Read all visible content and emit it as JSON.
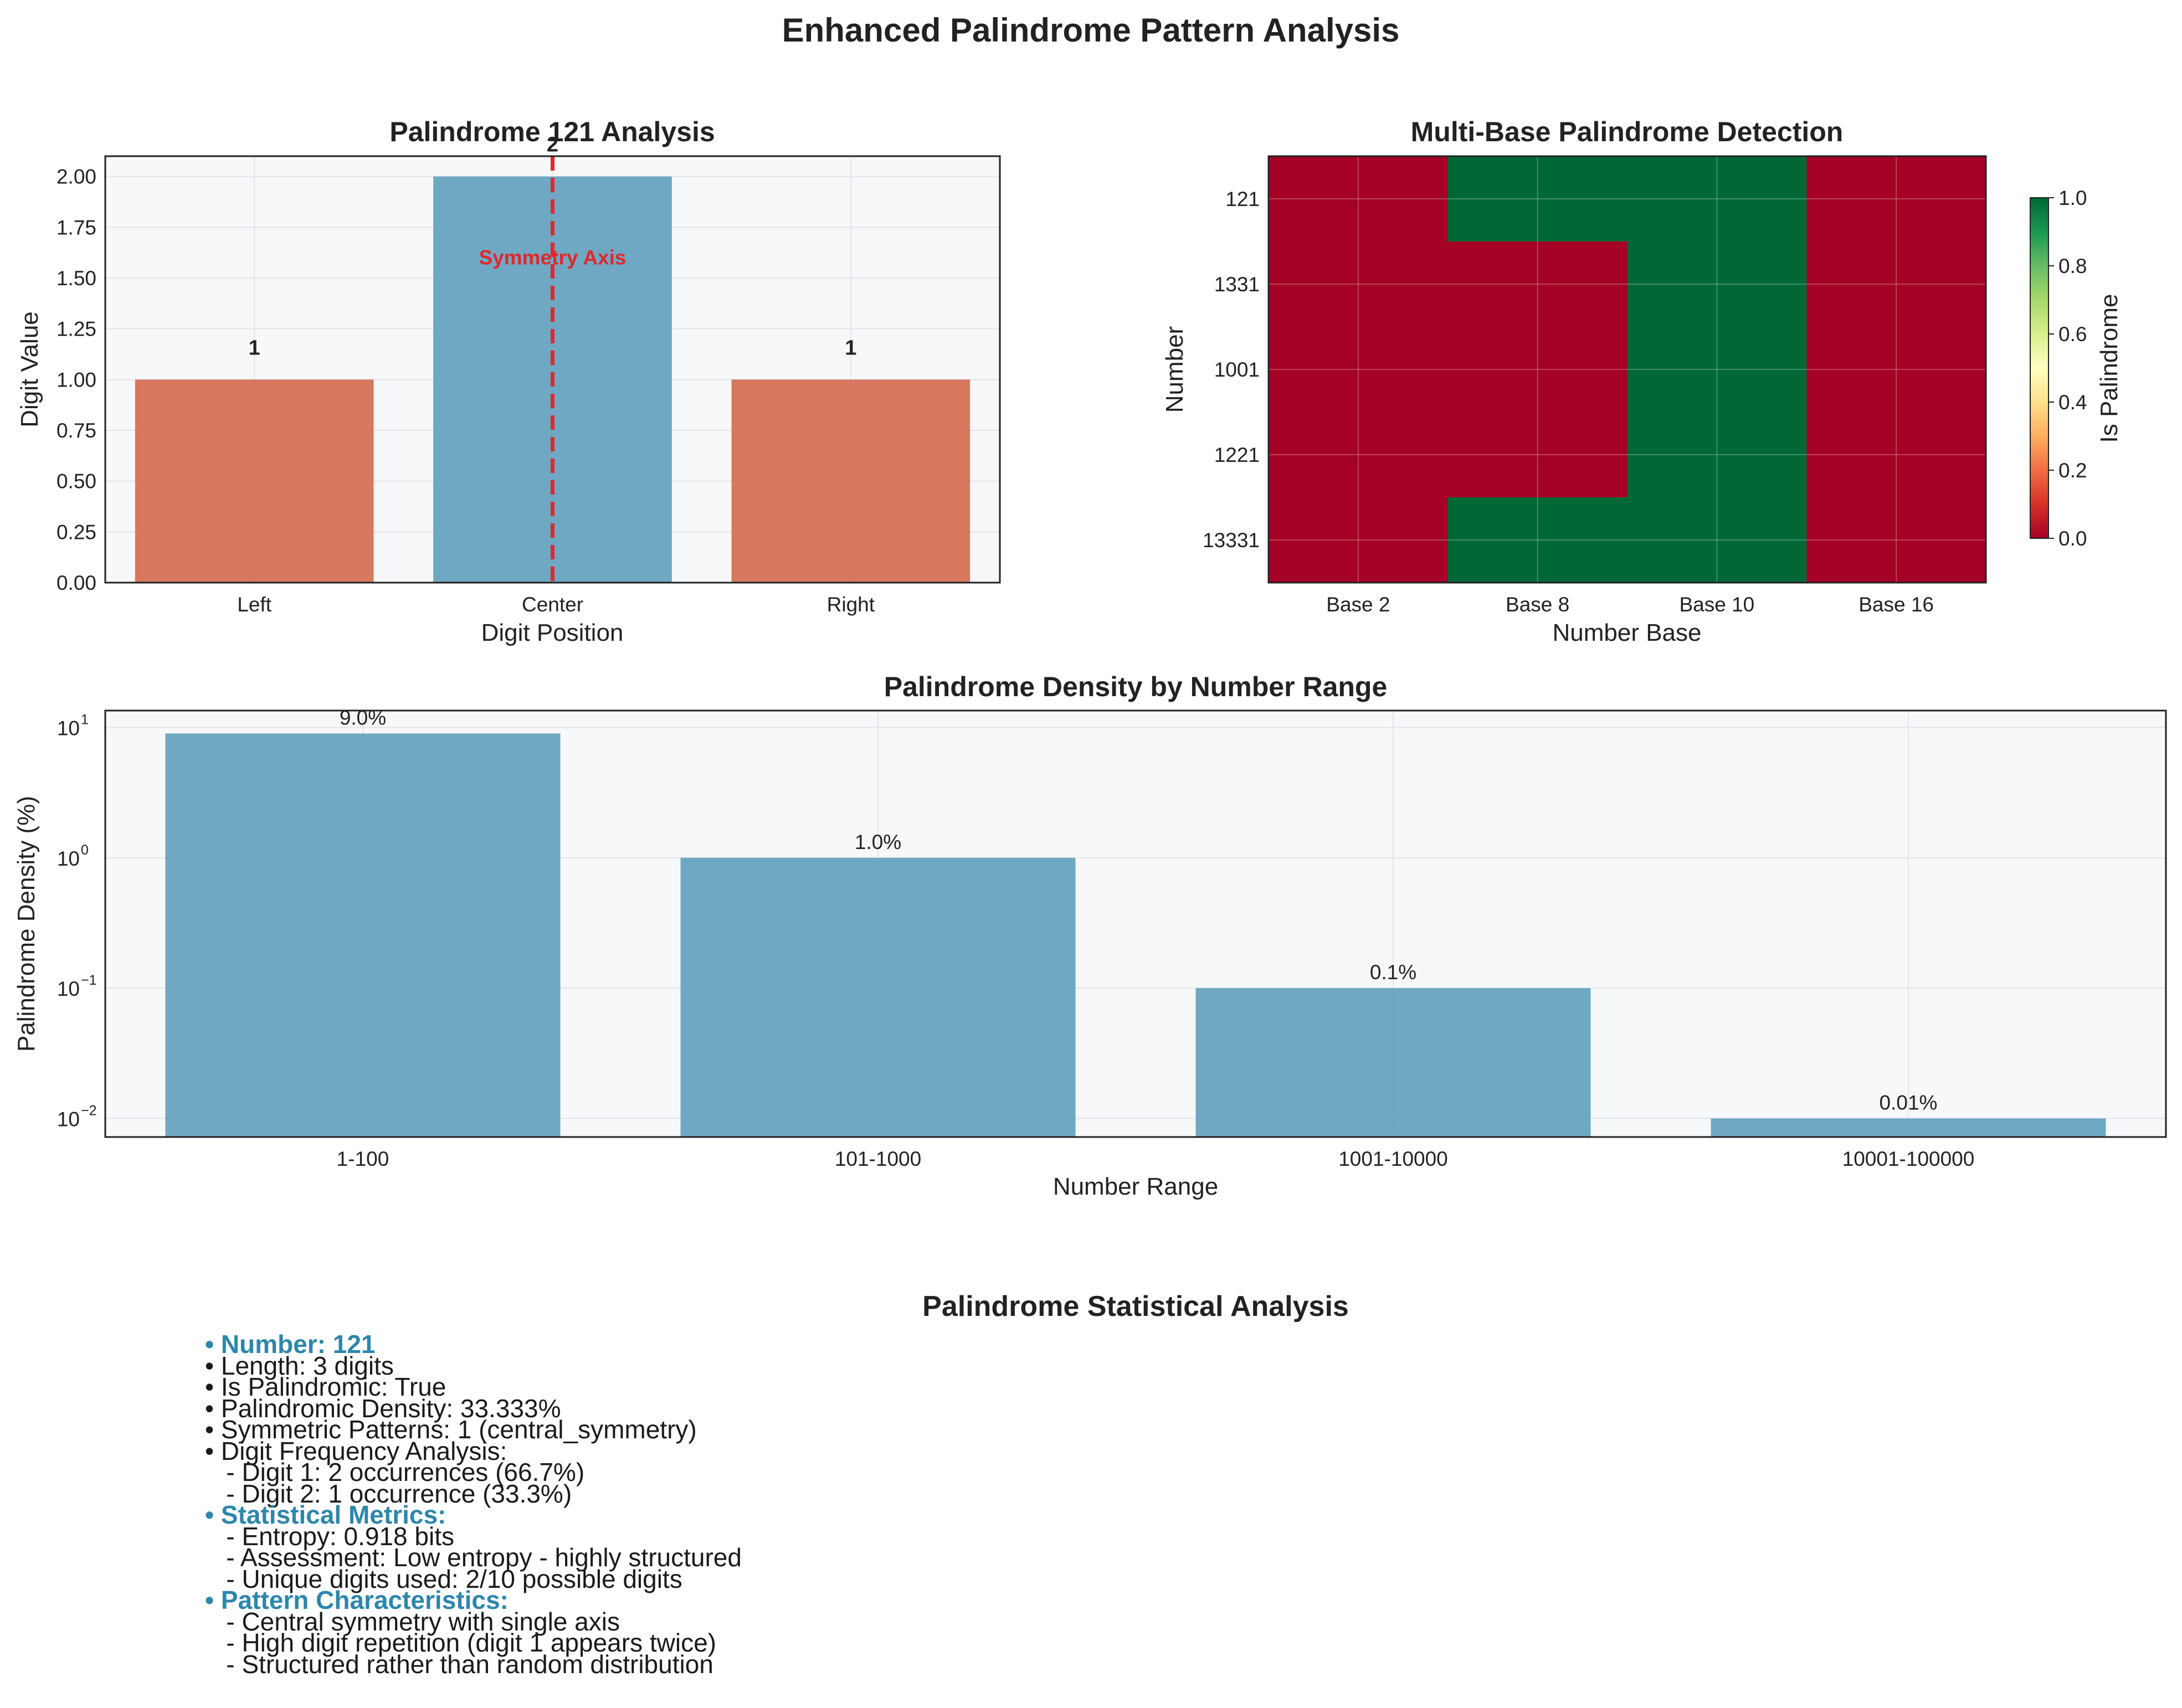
{
  "title": "Enhanced Palindrome Pattern Analysis",
  "colors": {
    "bar_warm": "#d46a4e",
    "bar_blue": "#5f9fbc",
    "axis_red": "#e0282e",
    "heat_false": "#a50026",
    "heat_true": "#006837",
    "stats_header": "#2e86ab",
    "panel_bg": "#f7f8fa",
    "grid": "#e3e5ea"
  },
  "chart_data": [
    {
      "type": "bar",
      "title": "Palindrome 121 Analysis",
      "xlabel": "Digit Position",
      "ylabel": "Digit Value",
      "categories": [
        "Left",
        "Center",
        "Right"
      ],
      "values": [
        1,
        2,
        1
      ],
      "value_labels": [
        "1",
        "2",
        "1"
      ],
      "bar_colors": [
        "#d46a4e",
        "#5f9fbc",
        "#d46a4e"
      ],
      "ylim": [
        0,
        2.1
      ],
      "yticks": [
        0,
        0.25,
        0.5,
        0.75,
        1.0,
        1.25,
        1.5,
        1.75,
        2.0
      ],
      "ytick_labels": [
        "0.00",
        "0.25",
        "0.50",
        "0.75",
        "1.00",
        "1.25",
        "1.50",
        "1.75",
        "2.00"
      ],
      "symmetry_axis_x": "Center",
      "annotation": "Symmetry Axis",
      "grid": true
    },
    {
      "type": "heatmap",
      "title": "Multi-Base Palindrome Detection",
      "xlabel": "Number Base",
      "ylabel": "Number",
      "x_labels": [
        "Base 2",
        "Base 8",
        "Base 10",
        "Base 16"
      ],
      "y_labels": [
        "121",
        "1331",
        "1001",
        "1221",
        "13331"
      ],
      "values": [
        [
          0,
          1,
          1,
          0
        ],
        [
          0,
          0,
          1,
          0
        ],
        [
          0,
          0,
          1,
          0
        ],
        [
          0,
          0,
          1,
          0
        ],
        [
          0,
          1,
          1,
          0
        ]
      ],
      "colorbar_label": "Is Palindrome",
      "colorbar_range": [
        0,
        1
      ],
      "colorbar_ticks": [
        "0.0",
        "0.2",
        "0.4",
        "0.6",
        "0.8",
        "1.0"
      ],
      "colormap": "RdYlGn"
    },
    {
      "type": "bar",
      "title": "Palindrome Density by Number Range",
      "xlabel": "Number Range",
      "ylabel": "Palindrome Density (%)",
      "categories": [
        "1-100",
        "101-1000",
        "1001-10000",
        "10001-100000"
      ],
      "values": [
        9.0,
        1.0,
        0.1,
        0.01
      ],
      "value_labels": [
        "9.0%",
        "1.0%",
        "0.1%",
        "0.01%"
      ],
      "yscale": "log",
      "ylim": [
        0.0072,
        13.5
      ],
      "yticks": [
        0.01,
        0.1,
        1,
        10
      ],
      "ytick_exponents": [
        "−2",
        "−1",
        "0",
        "1"
      ],
      "grid": true
    }
  ],
  "stats": {
    "title": "Palindrome Statistical Analysis",
    "lines": [
      {
        "text": "• Number: 121",
        "header": true
      },
      {
        "text": "• Length: 3 digits",
        "header": false
      },
      {
        "text": "• Is Palindromic: True",
        "header": false
      },
      {
        "text": "• Palindromic Density: 33.333%",
        "header": false
      },
      {
        "text": "• Symmetric Patterns: 1 (central_symmetry)",
        "header": false
      },
      {
        "text": "• Digit Frequency Analysis:",
        "header": false
      },
      {
        "text": "   - Digit 1: 2 occurrences (66.7%)",
        "header": false
      },
      {
        "text": "   - Digit 2: 1 occurrence (33.3%)",
        "header": false
      },
      {
        "text": "• Statistical Metrics:",
        "header": true
      },
      {
        "text": "   - Entropy: 0.918 bits",
        "header": false
      },
      {
        "text": "   - Assessment: Low entropy - highly structured",
        "header": false
      },
      {
        "text": "   - Unique digits used: 2/10 possible digits",
        "header": false
      },
      {
        "text": "• Pattern Characteristics:",
        "header": true
      },
      {
        "text": "   - Central symmetry with single axis",
        "header": false
      },
      {
        "text": "   - High digit repetition (digit 1 appears twice)",
        "header": false
      },
      {
        "text": "   - Structured rather than random distribution",
        "header": false
      }
    ]
  }
}
